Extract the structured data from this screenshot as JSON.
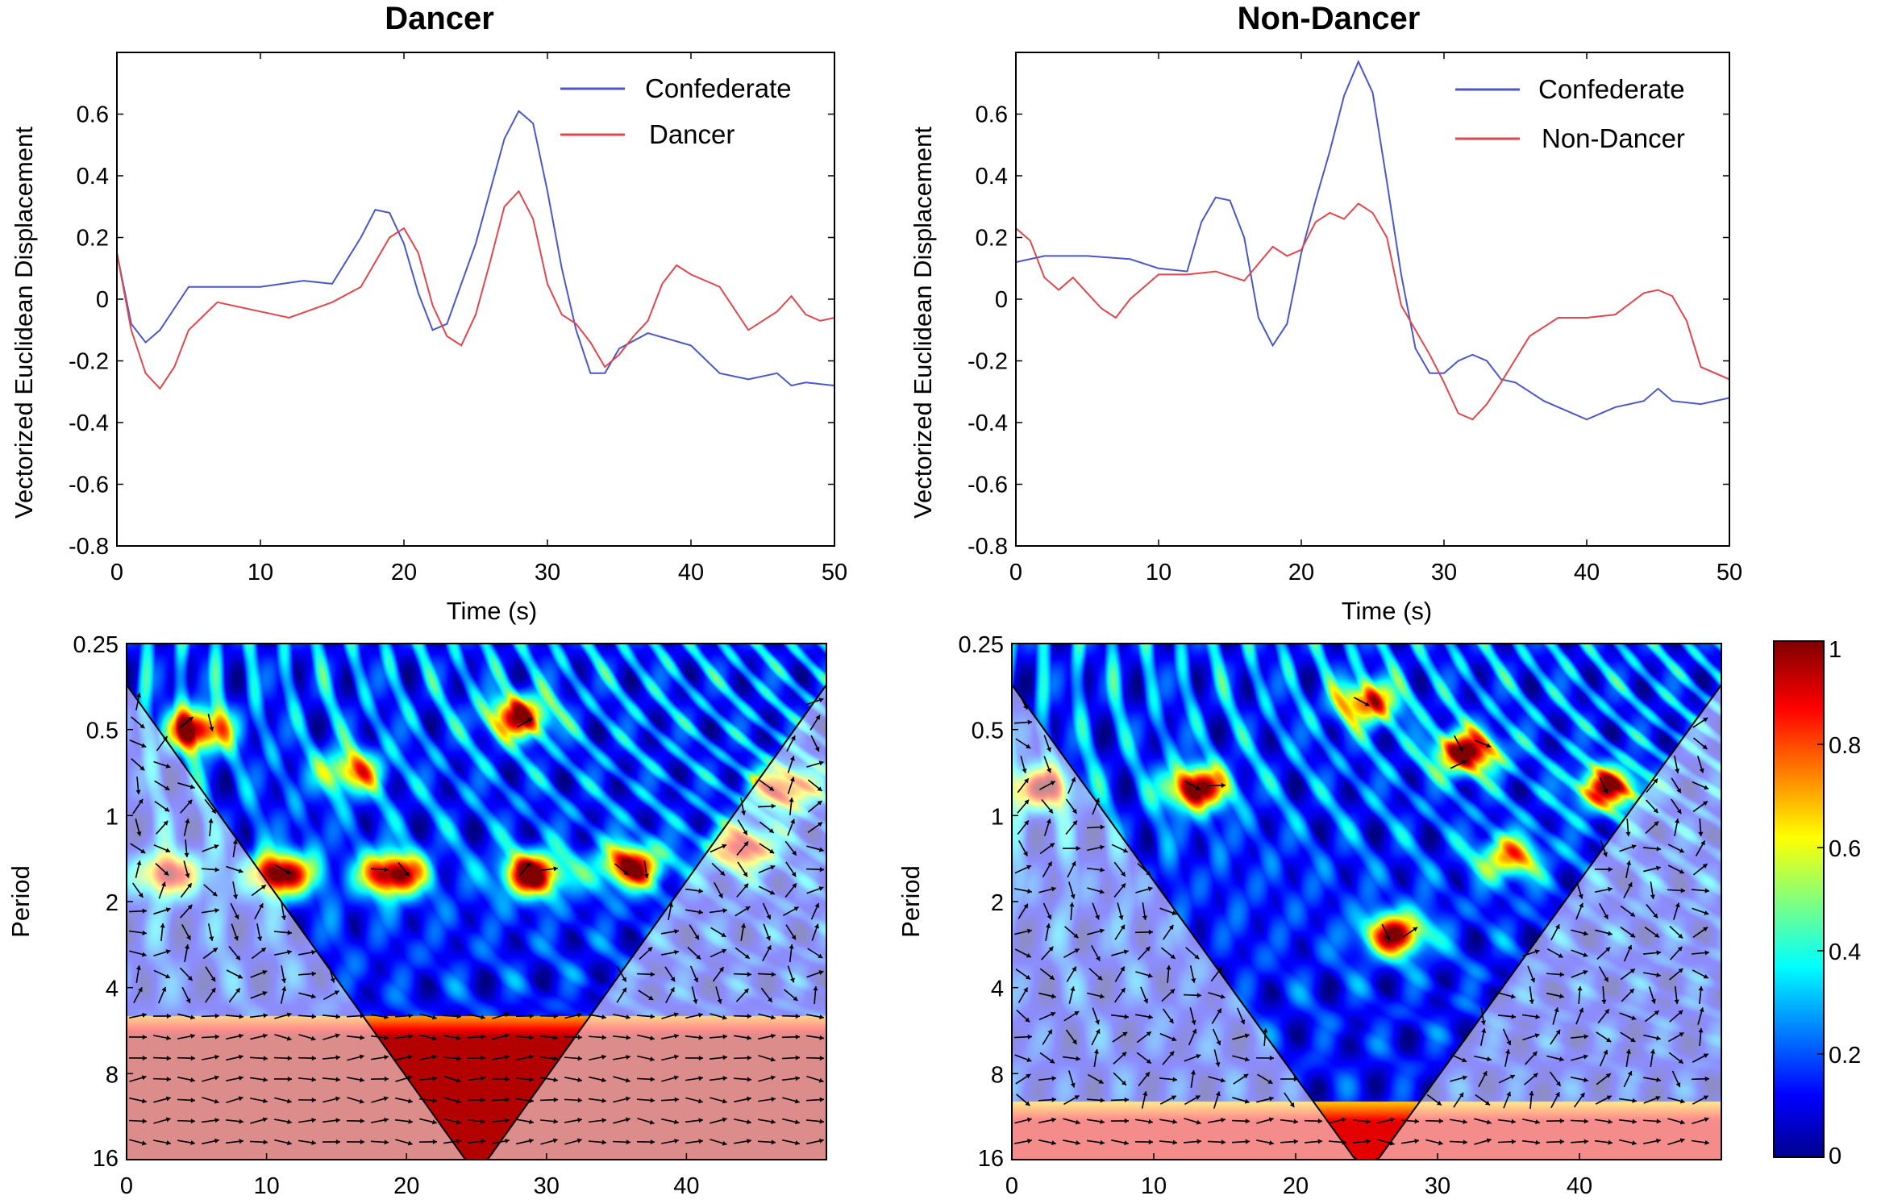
{
  "colors": {
    "confederate": "#4a57c9",
    "partner": "#e0474d",
    "axis": "#000000"
  },
  "chart_data": [
    {
      "type": "line",
      "panel": "top-left",
      "title": "Dancer",
      "xlabel": "Time (s)",
      "ylabel": "Vectorized Euclidean Displacement",
      "xlim": [
        0,
        50
      ],
      "ylim": [
        -0.8,
        0.8
      ],
      "xticks": [
        "0",
        "10",
        "20",
        "30",
        "40",
        "50"
      ],
      "yticks": [
        "0.6",
        "0.4",
        "0.2",
        "0",
        "-0.2",
        "-0.4",
        "-0.6",
        "-0.8"
      ],
      "ytick_values": [
        0.6,
        0.4,
        0.2,
        0,
        -0.2,
        -0.4,
        -0.6,
        -0.8
      ],
      "legend_position": "top-right",
      "series": [
        {
          "name": "Confederate",
          "x": [
            0,
            1,
            2,
            3,
            4,
            5,
            7,
            10,
            13,
            15,
            17,
            18,
            19,
            20,
            21,
            22,
            23,
            24,
            25,
            26,
            27,
            28,
            29,
            30,
            31,
            32,
            33,
            34,
            35,
            37,
            40,
            42,
            44,
            46,
            47,
            48,
            50
          ],
          "y": [
            0.15,
            -0.08,
            -0.14,
            -0.1,
            -0.03,
            0.04,
            0.04,
            0.04,
            0.06,
            0.05,
            0.2,
            0.29,
            0.28,
            0.18,
            0.02,
            -0.1,
            -0.08,
            0.05,
            0.18,
            0.35,
            0.52,
            0.61,
            0.57,
            0.35,
            0.1,
            -0.1,
            -0.24,
            -0.24,
            -0.16,
            -0.11,
            -0.15,
            -0.24,
            -0.26,
            -0.24,
            -0.28,
            -0.27,
            -0.28
          ]
        },
        {
          "name": "Dancer",
          "x": [
            0,
            1,
            2,
            3,
            4,
            5,
            7,
            10,
            12,
            15,
            17,
            19,
            20,
            21,
            22,
            23,
            24,
            25,
            26,
            27,
            28,
            29,
            30,
            31,
            32,
            33,
            34,
            35,
            36,
            37,
            38,
            39,
            40,
            42,
            44,
            46,
            47,
            48,
            49,
            50
          ],
          "y": [
            0.15,
            -0.1,
            -0.24,
            -0.29,
            -0.22,
            -0.1,
            -0.01,
            -0.04,
            -0.06,
            -0.01,
            0.04,
            0.2,
            0.23,
            0.15,
            -0.02,
            -0.12,
            -0.15,
            -0.05,
            0.12,
            0.3,
            0.35,
            0.26,
            0.05,
            -0.05,
            -0.08,
            -0.14,
            -0.22,
            -0.18,
            -0.12,
            -0.07,
            0.05,
            0.11,
            0.08,
            0.04,
            -0.1,
            -0.04,
            0.01,
            -0.05,
            -0.07,
            -0.06
          ]
        }
      ]
    },
    {
      "type": "line",
      "panel": "top-right",
      "title": "Non-Dancer",
      "xlabel": "Time (s)",
      "ylabel": "Vectorized Euclidean Displacement",
      "xlim": [
        0,
        50
      ],
      "ylim": [
        -0.8,
        0.8
      ],
      "xticks": [
        "0",
        "10",
        "20",
        "30",
        "40",
        "50"
      ],
      "yticks": [
        "0.6",
        "0.4",
        "0.2",
        "0",
        "-0.2",
        "-0.4",
        "-0.6",
        "-0.8"
      ],
      "ytick_values": [
        0.6,
        0.4,
        0.2,
        0,
        -0.2,
        -0.4,
        -0.6,
        -0.8
      ],
      "legend_position": "top-right",
      "series": [
        {
          "name": "Confederate",
          "x": [
            0,
            2,
            5,
            8,
            10,
            12,
            13,
            14,
            15,
            16,
            17,
            18,
            19,
            20,
            21,
            22,
            23,
            24,
            25,
            26,
            27,
            28,
            29,
            30,
            31,
            32,
            33,
            34,
            35,
            37,
            40,
            42,
            44,
            45,
            46,
            48,
            50
          ],
          "y": [
            0.12,
            0.14,
            0.14,
            0.13,
            0.1,
            0.09,
            0.25,
            0.33,
            0.32,
            0.2,
            -0.06,
            -0.15,
            -0.08,
            0.15,
            0.32,
            0.48,
            0.66,
            0.77,
            0.67,
            0.38,
            0.08,
            -0.16,
            -0.24,
            -0.24,
            -0.2,
            -0.18,
            -0.2,
            -0.26,
            -0.27,
            -0.33,
            -0.39,
            -0.35,
            -0.33,
            -0.29,
            -0.33,
            -0.34,
            -0.32
          ]
        },
        {
          "name": "Non-Dancer",
          "x": [
            0,
            1,
            2,
            3,
            4,
            6,
            7,
            8,
            10,
            12,
            14,
            16,
            18,
            19,
            20,
            21,
            22,
            23,
            24,
            25,
            26,
            27,
            28,
            29,
            30,
            31,
            32,
            33,
            34,
            36,
            38,
            40,
            42,
            44,
            45,
            46,
            47,
            48,
            50
          ],
          "y": [
            0.23,
            0.19,
            0.07,
            0.03,
            0.07,
            -0.03,
            -0.06,
            0.0,
            0.08,
            0.08,
            0.09,
            0.06,
            0.17,
            0.14,
            0.16,
            0.25,
            0.28,
            0.26,
            0.31,
            0.28,
            0.2,
            -0.02,
            -0.1,
            -0.18,
            -0.27,
            -0.37,
            -0.39,
            -0.34,
            -0.27,
            -0.12,
            -0.06,
            -0.06,
            -0.05,
            0.02,
            0.03,
            0.01,
            -0.07,
            -0.22,
            -0.26
          ]
        }
      ]
    },
    {
      "type": "heatmap",
      "panel": "bottom-left",
      "title": "",
      "ylabel": "Period",
      "xlim": [
        0,
        50
      ],
      "yscale": "log2",
      "xticks": [
        "0",
        "10",
        "20",
        "30",
        "40"
      ],
      "yticks": [
        "0.25",
        "0.5",
        "1",
        "2",
        "4",
        "8",
        "16"
      ],
      "ytick_values": [
        0.25,
        0.5,
        1,
        2,
        4,
        8,
        16
      ],
      "hotspots": [
        {
          "t": 5,
          "period": 0.5,
          "v": 0.9
        },
        {
          "t": 11,
          "period": 1.6,
          "v": 0.95
        },
        {
          "t": 19,
          "period": 1.6,
          "v": 0.95
        },
        {
          "t": 29,
          "period": 1.6,
          "v": 0.95
        },
        {
          "t": 36,
          "period": 1.5,
          "v": 0.85
        },
        {
          "t": 28,
          "period": 0.45,
          "v": 0.8
        },
        {
          "t": 44,
          "period": 1.3,
          "v": 0.8
        },
        {
          "t": 47,
          "period": 0.8,
          "v": 0.75
        },
        {
          "t": 16,
          "period": 0.7,
          "v": 0.6
        },
        {
          "t": 3,
          "period": 1.6,
          "v": 0.8
        }
      ],
      "band": {
        "period_from": 5,
        "period_to": 16,
        "v": 0.95
      }
    },
    {
      "type": "heatmap",
      "panel": "bottom-right",
      "title": "",
      "ylabel": "Period",
      "xlim": [
        0,
        50
      ],
      "yscale": "log2",
      "xticks": [
        "0",
        "10",
        "20",
        "30",
        "40"
      ],
      "yticks": [
        "0.25",
        "0.5",
        "1",
        "2",
        "4",
        "8",
        "16"
      ],
      "ytick_values": [
        0.25,
        0.5,
        1,
        2,
        4,
        8,
        16
      ],
      "hotspots": [
        {
          "t": 13,
          "period": 0.8,
          "v": 0.9
        },
        {
          "t": 32,
          "period": 0.6,
          "v": 0.9
        },
        {
          "t": 27,
          "period": 2.6,
          "v": 0.85
        },
        {
          "t": 42,
          "period": 0.8,
          "v": 0.8
        },
        {
          "t": 25,
          "period": 0.4,
          "v": 0.7
        },
        {
          "t": 35,
          "period": 1.4,
          "v": 0.6
        },
        {
          "t": 2,
          "period": 0.8,
          "v": 0.8
        }
      ],
      "band": {
        "period_from": 10,
        "period_to": 16,
        "v": 0.9
      }
    },
    {
      "type": "colorbar",
      "panel": "right",
      "range": [
        0,
        1
      ],
      "ticks": [
        "1",
        "0.8",
        "0.6",
        "0.4",
        "0.2",
        "0"
      ],
      "tick_values": [
        1,
        0.8,
        0.6,
        0.4,
        0.2,
        0
      ]
    }
  ]
}
